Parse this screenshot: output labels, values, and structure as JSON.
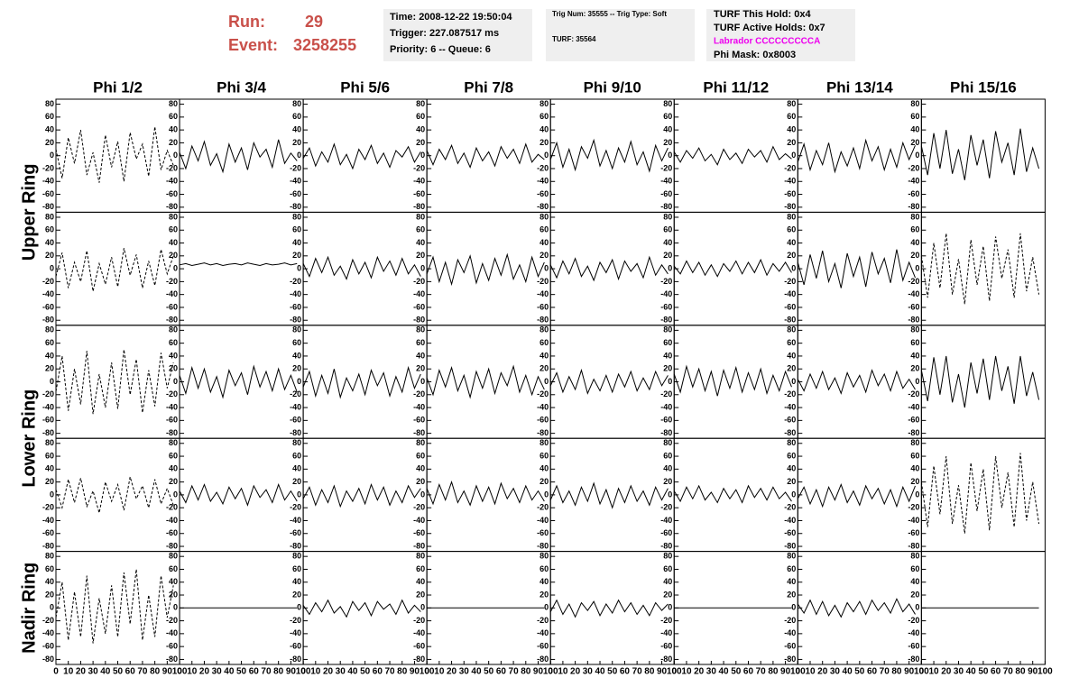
{
  "header": {
    "run_label": "Run:",
    "run": "29",
    "event_label": "Event:",
    "event": "3258255",
    "box1": [
      "Time: 2008-12-22 19:50:04",
      "Trigger: 227.087517 ms",
      "Priority: 6 -- Queue: 6"
    ],
    "box2": [
      "Trig Num: 35555 -- Trig Type: Soft",
      "TURF: 35564"
    ],
    "box3": [
      "TURF This Hold: 0x4",
      "TURF Active Holds: 0x7",
      "Labrador CCCCCCCCCA",
      "Phi Mask: 0x8003"
    ],
    "box3_colors": [
      "#000000",
      "#000000",
      "#ee00ee",
      "#000000"
    ]
  },
  "columns": [
    "Phi 1/2",
    "Phi 3/4",
    "Phi 5/6",
    "Phi 7/8",
    "Phi 9/10",
    "Phi 11/12",
    "Phi 13/14",
    "Phi 15/16"
  ],
  "ring_labels": [
    "Upper Ring",
    "Lower Ring",
    "Nadir Ring"
  ],
  "axes": {
    "xlim": [
      0,
      100
    ],
    "ylim": [
      -85,
      85
    ],
    "xticks": [
      0,
      10,
      20,
      30,
      40,
      50,
      60,
      70,
      80,
      90,
      100
    ],
    "yticks": [
      -80,
      -60,
      -40,
      -20,
      0,
      20,
      40,
      60,
      80
    ],
    "x": [
      0,
      5,
      10,
      15,
      20,
      25,
      30,
      35,
      40,
      45,
      50,
      55,
      60,
      65,
      70,
      75,
      80,
      85,
      90,
      95
    ]
  },
  "panels": [
    [
      {
        "dashed": true,
        "values": [
          10,
          -35,
          28,
          -12,
          40,
          -30,
          5,
          -42,
          32,
          -18,
          22,
          -40,
          36,
          -5,
          18,
          -32,
          45,
          -22,
          8,
          -15
        ]
      },
      {
        "dashed": false,
        "values": [
          5,
          -20,
          15,
          -8,
          22,
          -15,
          3,
          -25,
          18,
          -10,
          12,
          -22,
          20,
          -2,
          10,
          -18,
          25,
          -12,
          4,
          -8
        ]
      },
      {
        "dashed": false,
        "values": [
          -4,
          12,
          -16,
          6,
          -10,
          18,
          -14,
          2,
          -20,
          10,
          -6,
          16,
          -12,
          4,
          -18,
          8,
          -2,
          14,
          -10,
          6
        ]
      },
      {
        "dashed": false,
        "values": [
          8,
          -14,
          10,
          -6,
          16,
          -12,
          4,
          -18,
          12,
          -8,
          6,
          -16,
          14,
          -4,
          10,
          -12,
          18,
          -10,
          2,
          -6
        ]
      },
      {
        "dashed": false,
        "values": [
          -6,
          20,
          -18,
          10,
          -22,
          14,
          -4,
          24,
          -16,
          8,
          -20,
          12,
          -10,
          22,
          -14,
          6,
          -24,
          16,
          -8,
          12
        ]
      },
      {
        "dashed": false,
        "values": [
          6,
          -10,
          8,
          -4,
          12,
          -8,
          2,
          -14,
          10,
          -6,
          4,
          -12,
          10,
          -2,
          8,
          -10,
          14,
          -6,
          3,
          -5
        ]
      },
      {
        "dashed": false,
        "values": [
          -10,
          18,
          -22,
          8,
          -14,
          20,
          -25,
          6,
          -16,
          12,
          -20,
          24,
          -8,
          14,
          -22,
          10,
          -18,
          20,
          -6,
          16
        ]
      },
      {
        "dashed": false,
        "values": [
          15,
          -30,
          35,
          -20,
          40,
          -28,
          10,
          -38,
          32,
          -15,
          25,
          -35,
          38,
          -10,
          20,
          -30,
          42,
          -25,
          12,
          -20
        ]
      }
    ],
    [
      {
        "dashed": true,
        "values": [
          -12,
          25,
          -30,
          10,
          -20,
          28,
          -35,
          8,
          -24,
          18,
          -28,
          32,
          -10,
          22,
          -30,
          12,
          -26,
          30,
          -8,
          20
        ]
      },
      {
        "dashed": false,
        "values": [
          6,
          8,
          5,
          7,
          9,
          6,
          8,
          5,
          7,
          8,
          6,
          9,
          7,
          5,
          8,
          6,
          7,
          9,
          6,
          8
        ]
      },
      {
        "dashed": false,
        "values": [
          8,
          -12,
          16,
          -6,
          18,
          -10,
          4,
          -16,
          14,
          -8,
          10,
          -14,
          18,
          -4,
          12,
          -10,
          16,
          -8,
          6,
          -12
        ]
      },
      {
        "dashed": false,
        "values": [
          -8,
          18,
          -20,
          10,
          -24,
          14,
          -6,
          20,
          -22,
          8,
          -18,
          16,
          -10,
          22,
          -16,
          6,
          -20,
          18,
          -12,
          10
        ]
      },
      {
        "dashed": false,
        "values": [
          6,
          -14,
          12,
          -8,
          16,
          -12,
          4,
          -18,
          10,
          -6,
          14,
          -16,
          12,
          -4,
          8,
          -14,
          18,
          -10,
          6,
          -8
        ]
      },
      {
        "dashed": false,
        "values": [
          4,
          -8,
          12,
          -6,
          10,
          -10,
          6,
          -12,
          8,
          -4,
          12,
          -8,
          10,
          -6,
          14,
          -10,
          8,
          -4,
          10,
          -6
        ]
      },
      {
        "dashed": false,
        "values": [
          10,
          -25,
          22,
          -15,
          28,
          -20,
          8,
          -30,
          24,
          -12,
          18,
          -28,
          26,
          -8,
          16,
          -22,
          30,
          -18,
          10,
          -14
        ]
      },
      {
        "dashed": true,
        "values": [
          20,
          -45,
          40,
          -30,
          55,
          -40,
          15,
          -55,
          45,
          -25,
          35,
          -50,
          50,
          -15,
          30,
          -45,
          55,
          -35,
          18,
          -40
        ]
      }
    ],
    [
      {
        "dashed": true,
        "values": [
          -15,
          40,
          -45,
          20,
          -35,
          48,
          -50,
          12,
          -40,
          30,
          -42,
          50,
          -20,
          35,
          -48,
          18,
          -38,
          45,
          -10,
          30
        ]
      },
      {
        "dashed": false,
        "values": [
          10,
          -18,
          22,
          -10,
          20,
          -16,
          8,
          -24,
          18,
          -6,
          14,
          -20,
          24,
          -8,
          16,
          -14,
          20,
          -12,
          10,
          -16
        ]
      },
      {
        "dashed": false,
        "values": [
          -8,
          16,
          -22,
          10,
          -18,
          20,
          -24,
          6,
          -14,
          12,
          -20,
          18,
          -6,
          14,
          -22,
          8,
          -16,
          22,
          -10,
          12
        ]
      },
      {
        "dashed": false,
        "values": [
          6,
          -20,
          18,
          -8,
          22,
          -14,
          10,
          -24,
          16,
          -10,
          20,
          -18,
          14,
          -6,
          24,
          -16,
          10,
          -20,
          8,
          -12
        ]
      },
      {
        "dashed": false,
        "values": [
          -6,
          14,
          -16,
          8,
          -12,
          18,
          -18,
          4,
          -14,
          10,
          -16,
          12,
          -8,
          16,
          -14,
          6,
          -12,
          16,
          -6,
          10
        ]
      },
      {
        "dashed": false,
        "values": [
          12,
          -16,
          24,
          -8,
          20,
          -14,
          16,
          -22,
          18,
          -10,
          22,
          -16,
          14,
          -12,
          20,
          -18,
          10,
          -14,
          16,
          -8
        ]
      },
      {
        "dashed": false,
        "values": [
          4,
          -14,
          12,
          -10,
          16,
          -12,
          6,
          -18,
          14,
          -8,
          10,
          -16,
          18,
          -6,
          12,
          -14,
          16,
          -10,
          4,
          -12
        ]
      },
      {
        "dashed": false,
        "values": [
          18,
          -30,
          38,
          -20,
          40,
          -32,
          12,
          -40,
          30,
          -18,
          36,
          -28,
          40,
          -14,
          24,
          -34,
          40,
          -22,
          15,
          -28
        ]
      }
    ],
    [
      {
        "dashed": true,
        "values": [
          8,
          -20,
          24,
          -12,
          26,
          -18,
          6,
          -28,
          20,
          -10,
          16,
          -24,
          28,
          -6,
          14,
          -20,
          24,
          -14,
          10,
          -16
        ]
      },
      {
        "dashed": false,
        "values": [
          6,
          -12,
          14,
          -8,
          16,
          -10,
          4,
          -14,
          12,
          -6,
          10,
          -16,
          14,
          -4,
          8,
          -12,
          16,
          -8,
          6,
          -10
        ]
      },
      {
        "dashed": false,
        "values": [
          -6,
          12,
          -16,
          8,
          -12,
          14,
          -18,
          6,
          -10,
          10,
          -14,
          16,
          -8,
          12,
          -16,
          6,
          -12,
          14,
          -4,
          10
        ]
      },
      {
        "dashed": false,
        "values": [
          10,
          -14,
          16,
          -8,
          20,
          -12,
          6,
          -16,
          14,
          -10,
          12,
          -14,
          18,
          -6,
          10,
          -12,
          14,
          -8,
          6,
          -10
        ]
      },
      {
        "dashed": false,
        "values": [
          -8,
          14,
          -12,
          6,
          -16,
          12,
          -10,
          18,
          -14,
          8,
          -20,
          10,
          -12,
          14,
          -10,
          6,
          -16,
          12,
          -8,
          10
        ]
      },
      {
        "dashed": false,
        "values": [
          6,
          -10,
          12,
          -6,
          14,
          -8,
          4,
          -12,
          10,
          -6,
          8,
          -12,
          14,
          -4,
          10,
          -8,
          12,
          -6,
          4,
          -10
        ]
      },
      {
        "dashed": false,
        "values": [
          -6,
          12,
          -14,
          8,
          -18,
          12,
          -8,
          16,
          -12,
          6,
          -16,
          14,
          -6,
          10,
          -14,
          8,
          -18,
          12,
          -10,
          14
        ]
      },
      {
        "dashed": true,
        "values": [
          20,
          -50,
          45,
          -30,
          60,
          -45,
          15,
          -60,
          50,
          -25,
          40,
          -55,
          60,
          -20,
          35,
          -50,
          65,
          -40,
          20,
          -45
        ]
      }
    ],
    [
      {
        "dashed": true,
        "values": [
          -15,
          40,
          -50,
          25,
          -45,
          50,
          -55,
          15,
          -40,
          35,
          -45,
          55,
          -25,
          60,
          -50,
          20,
          -45,
          50,
          -15,
          35
        ]
      },
      {
        "dashed": false,
        "values": [
          0,
          0,
          0,
          0,
          0,
          0,
          0,
          0,
          0,
          0,
          0,
          0,
          0,
          0,
          0,
          0,
          0,
          0,
          0,
          0
        ]
      },
      {
        "dashed": false,
        "values": [
          4,
          -10,
          8,
          -6,
          12,
          -8,
          2,
          -14,
          10,
          -4,
          8,
          -12,
          10,
          -2,
          6,
          -10,
          12,
          -8,
          4,
          -6
        ]
      },
      {
        "dashed": false,
        "values": [
          0,
          0,
          0,
          0,
          0,
          0,
          0,
          0,
          0,
          0,
          0,
          0,
          0,
          0,
          0,
          0,
          0,
          0,
          0,
          0
        ]
      },
      {
        "dashed": false,
        "values": [
          -6,
          12,
          -10,
          6,
          -14,
          8,
          -4,
          10,
          -12,
          6,
          -8,
          12,
          -6,
          8,
          -10,
          4,
          -12,
          8,
          -4,
          6
        ]
      },
      {
        "dashed": false,
        "values": [
          0,
          0,
          0,
          0,
          0,
          0,
          0,
          0,
          0,
          0,
          0,
          0,
          0,
          0,
          0,
          0,
          0,
          0,
          0,
          0
        ]
      },
      {
        "dashed": false,
        "values": [
          6,
          -8,
          12,
          -10,
          10,
          -12,
          4,
          -14,
          8,
          -6,
          10,
          -10,
          12,
          -4,
          8,
          -8,
          14,
          -6,
          6,
          -10
        ]
      },
      {
        "dashed": false,
        "values": [
          0,
          0,
          0,
          0,
          0,
          0,
          0,
          0,
          0,
          0,
          0,
          0,
          0,
          0,
          0,
          0,
          0,
          0,
          0,
          0
        ]
      }
    ]
  ]
}
